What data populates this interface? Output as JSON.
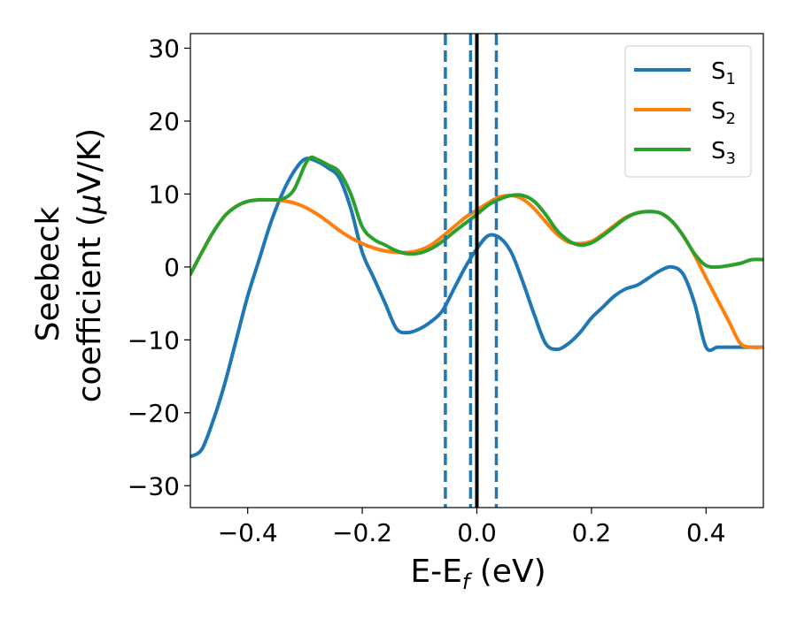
{
  "chart_data": {
    "type": "line",
    "title": "",
    "xlabel": {
      "main": "E-E",
      "sub": "f",
      "tail": " (eV)"
    },
    "ylabel": {
      "line1": "Seebeck",
      "line2_a": "coefficient  (",
      "line2_mu": "μ",
      "line2_b": "V/K)"
    },
    "xlim": [
      -0.5,
      0.5
    ],
    "ylim": [
      -33,
      32
    ],
    "xticks": [
      -0.4,
      -0.2,
      0.0,
      0.2,
      0.4
    ],
    "xtick_labels": [
      "−0.4",
      "−0.2",
      "0.0",
      "0.2",
      "0.4"
    ],
    "yticks": [
      -30,
      -20,
      -10,
      0,
      10,
      20,
      30
    ],
    "ytick_labels": [
      "−30",
      "−20",
      "−10",
      "0",
      "10",
      "20",
      "30"
    ],
    "grid": false,
    "legend_position": "top-right",
    "series": [
      {
        "name": "S",
        "sub": "1",
        "color": "#1f77b4",
        "x": [
          -0.5,
          -0.48,
          -0.46,
          -0.44,
          -0.42,
          -0.4,
          -0.38,
          -0.36,
          -0.34,
          -0.32,
          -0.3,
          -0.28,
          -0.26,
          -0.24,
          -0.22,
          -0.2,
          -0.18,
          -0.16,
          -0.14,
          -0.12,
          -0.1,
          -0.08,
          -0.06,
          -0.04,
          -0.02,
          0.0,
          0.02,
          0.04,
          0.06,
          0.08,
          0.1,
          0.12,
          0.14,
          0.16,
          0.18,
          0.2,
          0.22,
          0.24,
          0.26,
          0.28,
          0.3,
          0.32,
          0.34,
          0.36,
          0.38,
          0.4,
          0.42,
          0.44,
          0.46,
          0.48,
          0.5
        ],
        "y": [
          -26,
          -25,
          -21,
          -16,
          -10,
          -4,
          1,
          6,
          10,
          13,
          14.8,
          14.5,
          13.6,
          12.2,
          8,
          2,
          -1.5,
          -5,
          -8.5,
          -9,
          -8.5,
          -7.5,
          -6,
          -3,
          0,
          2.5,
          4.3,
          4,
          2,
          -2,
          -6.5,
          -10.5,
          -11.3,
          -10.5,
          -9,
          -7,
          -5.5,
          -4,
          -3,
          -2.5,
          -1.5,
          -0.5,
          0,
          -1,
          -5,
          -11,
          -11,
          -11,
          -11,
          -11,
          -11
        ]
      },
      {
        "name": "S",
        "sub": "2",
        "color": "#ff7f0e",
        "x": [
          -0.5,
          -0.48,
          -0.46,
          -0.44,
          -0.42,
          -0.4,
          -0.38,
          -0.36,
          -0.34,
          -0.32,
          -0.3,
          -0.28,
          -0.26,
          -0.24,
          -0.22,
          -0.2,
          -0.18,
          -0.16,
          -0.14,
          -0.12,
          -0.1,
          -0.08,
          -0.06,
          -0.04,
          -0.02,
          0.0,
          0.02,
          0.04,
          0.06,
          0.08,
          0.1,
          0.12,
          0.14,
          0.16,
          0.18,
          0.2,
          0.22,
          0.24,
          0.26,
          0.28,
          0.3,
          0.32,
          0.34,
          0.36,
          0.38,
          0.4,
          0.42,
          0.44,
          0.46,
          0.48,
          0.5
        ],
        "y": [
          -1,
          2,
          4.8,
          7,
          8.3,
          9,
          9.2,
          9.2,
          9.1,
          8.8,
          8.2,
          7.3,
          6.2,
          5,
          4,
          3.2,
          2.6,
          2.2,
          2,
          2,
          2.3,
          3,
          4.2,
          5.5,
          6.8,
          7.8,
          8.8,
          9.6,
          9.8,
          9.3,
          8,
          6.2,
          4.5,
          3.4,
          3.2,
          3.5,
          4.5,
          5.7,
          6.8,
          7.4,
          7.6,
          7.4,
          6.3,
          4.3,
          1.6,
          -1.5,
          -4.5,
          -7.5,
          -10.5,
          -11,
          -11
        ]
      },
      {
        "name": "S",
        "sub": "3",
        "color": "#2ca02c",
        "x": [
          -0.5,
          -0.48,
          -0.46,
          -0.44,
          -0.42,
          -0.4,
          -0.38,
          -0.36,
          -0.34,
          -0.32,
          -0.3,
          -0.29,
          -0.28,
          -0.26,
          -0.24,
          -0.22,
          -0.2,
          -0.18,
          -0.16,
          -0.14,
          -0.12,
          -0.1,
          -0.08,
          -0.06,
          -0.04,
          -0.02,
          0.0,
          0.02,
          0.04,
          0.06,
          0.08,
          0.1,
          0.12,
          0.14,
          0.16,
          0.18,
          0.2,
          0.22,
          0.24,
          0.26,
          0.28,
          0.3,
          0.32,
          0.34,
          0.36,
          0.38,
          0.4,
          0.42,
          0.44,
          0.46,
          0.48,
          0.5
        ],
        "y": [
          -1,
          2,
          4.8,
          7,
          8.3,
          9,
          9.2,
          9.2,
          9.3,
          10.5,
          14,
          15,
          14.8,
          14,
          13,
          10,
          5.5,
          3.8,
          3,
          2.2,
          1.8,
          1.9,
          2.5,
          3.5,
          4.8,
          6,
          7.2,
          8.5,
          9.3,
          9.8,
          9.8,
          9,
          7.2,
          5,
          3.6,
          3,
          3.3,
          4.3,
          5.5,
          6.7,
          7.4,
          7.6,
          7.4,
          6.3,
          4.3,
          1.8,
          0.2,
          0,
          0.2,
          0.5,
          1,
          1
        ]
      }
    ],
    "vertical_lines": [
      {
        "x": -0.055,
        "style": "dashed",
        "color": "#1f77b4"
      },
      {
        "x": -0.011,
        "style": "dashed",
        "color": "#1f77b4"
      },
      {
        "x": 0.0,
        "style": "solid",
        "color": "#000000"
      },
      {
        "x": 0.034,
        "style": "dashed",
        "color": "#1f77b4"
      }
    ]
  }
}
